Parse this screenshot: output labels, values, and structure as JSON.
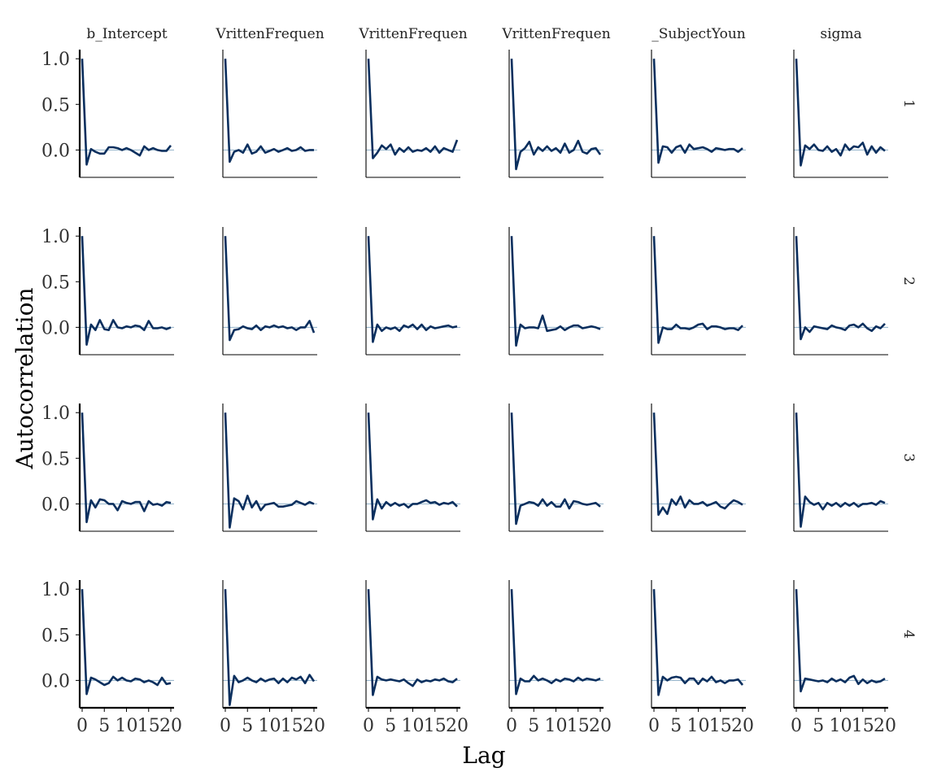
{
  "chart_data": {
    "type": "line",
    "xlabel": "Lag",
    "ylabel": "Autocorrelation",
    "columns": [
      "b_Intercept",
      "WrittenFrequency",
      "WrittenFrequency",
      "WrittenFrequency",
      "_SubjectYoung",
      "sigma"
    ],
    "column_labels_visible": [
      "b_Intercept",
      "VrittenFreque\u0000",
      "VrittenFreque\u0000",
      "VrittenFreque\u0000",
      "_SubjectYoun",
      "sigma"
    ],
    "rows": [
      "1",
      "2",
      "3",
      "4"
    ],
    "x_ticks": [
      0,
      5,
      10,
      15,
      20
    ],
    "x_tick_labels": [
      "0",
      "5",
      "10",
      "15",
      "20"
    ],
    "y_ticks": [
      0.0,
      0.5,
      1.0
    ],
    "y_tick_labels": [
      "0.0",
      "0.5",
      "1.0"
    ],
    "xlim": [
      0,
      20
    ],
    "ylim": [
      -0.3,
      1.1
    ],
    "lags": [
      0,
      1,
      2,
      3,
      4,
      5,
      6,
      7,
      8,
      9,
      10,
      11,
      12,
      13,
      14,
      15,
      16,
      17,
      18,
      19,
      20
    ],
    "colors": {
      "line": "#0b2f5e",
      "zero_line": "#8fb0c8",
      "axis": "#000000"
    },
    "panels": [
      [
        [
          1.0,
          -0.16,
          0.01,
          -0.02,
          -0.04,
          -0.04,
          0.03,
          0.03,
          0.02,
          0.0,
          0.02,
          0.0,
          -0.03,
          -0.06,
          0.04,
          0.0,
          0.02,
          0.0,
          -0.01,
          -0.01,
          0.05
        ],
        [
          1.0,
          -0.13,
          -0.02,
          0.0,
          -0.03,
          0.06,
          -0.04,
          -0.02,
          0.04,
          -0.03,
          -0.01,
          0.01,
          -0.02,
          0.0,
          0.02,
          -0.01,
          0.0,
          0.03,
          -0.01,
          0.0,
          0.0
        ],
        [
          1.0,
          -0.09,
          -0.03,
          0.05,
          0.01,
          0.06,
          -0.05,
          0.02,
          -0.02,
          0.03,
          -0.02,
          0.0,
          -0.01,
          0.02,
          -0.02,
          0.04,
          -0.03,
          0.02,
          0.0,
          -0.02,
          0.11
        ],
        [
          1.0,
          -0.21,
          -0.02,
          0.02,
          0.09,
          -0.05,
          0.03,
          -0.01,
          0.04,
          -0.01,
          0.02,
          -0.03,
          0.07,
          -0.03,
          0.0,
          0.1,
          -0.02,
          -0.04,
          0.01,
          0.02,
          -0.05
        ],
        [
          1.0,
          -0.14,
          0.04,
          0.03,
          -0.03,
          0.03,
          0.05,
          -0.03,
          0.06,
          0.01,
          0.02,
          0.03,
          0.01,
          -0.02,
          0.02,
          0.01,
          0.0,
          0.01,
          0.01,
          -0.02,
          0.02
        ],
        [
          1.0,
          -0.17,
          0.05,
          0.01,
          0.06,
          0.0,
          -0.01,
          0.04,
          -0.02,
          0.01,
          -0.06,
          0.06,
          0.0,
          0.04,
          0.03,
          0.08,
          -0.05,
          0.04,
          -0.03,
          0.03,
          -0.01
        ]
      ],
      [
        [
          1.0,
          -0.19,
          0.03,
          -0.03,
          0.08,
          -0.02,
          -0.03,
          0.08,
          0.0,
          -0.01,
          0.01,
          0.0,
          0.02,
          0.01,
          -0.03,
          0.07,
          -0.01,
          -0.01,
          0.0,
          -0.02,
          0.0
        ],
        [
          1.0,
          -0.14,
          -0.03,
          -0.02,
          0.01,
          -0.01,
          -0.02,
          0.02,
          -0.03,
          0.01,
          0.0,
          0.02,
          0.0,
          0.01,
          -0.01,
          0.0,
          -0.03,
          0.0,
          0.0,
          0.07,
          -0.06
        ],
        [
          1.0,
          -0.16,
          0.03,
          -0.04,
          0.0,
          -0.02,
          0.0,
          -0.04,
          0.02,
          0.0,
          0.03,
          -0.02,
          0.03,
          -0.03,
          0.01,
          -0.01,
          0.0,
          0.01,
          0.02,
          0.0,
          0.01
        ],
        [
          1.0,
          -0.2,
          0.03,
          -0.01,
          0.0,
          0.0,
          -0.01,
          0.13,
          -0.04,
          -0.03,
          -0.02,
          0.01,
          -0.03,
          0.0,
          0.02,
          0.02,
          -0.01,
          0.0,
          0.01,
          0.0,
          -0.02
        ],
        [
          1.0,
          -0.17,
          0.0,
          -0.02,
          -0.02,
          0.03,
          -0.01,
          -0.01,
          -0.02,
          0.0,
          0.03,
          0.04,
          -0.02,
          0.01,
          0.01,
          0.0,
          -0.02,
          -0.01,
          -0.01,
          -0.03,
          0.02
        ],
        [
          1.0,
          -0.13,
          0.0,
          -0.05,
          0.01,
          0.0,
          -0.01,
          -0.02,
          0.02,
          0.0,
          -0.01,
          -0.03,
          0.02,
          0.03,
          0.0,
          0.04,
          -0.01,
          -0.04,
          0.01,
          -0.01,
          0.04
        ]
      ],
      [
        [
          1.0,
          -0.2,
          0.04,
          -0.04,
          0.05,
          0.04,
          0.0,
          0.0,
          -0.07,
          0.03,
          0.01,
          0.0,
          0.02,
          0.02,
          -0.08,
          0.03,
          -0.01,
          0.0,
          -0.02,
          0.02,
          0.01
        ],
        [
          1.0,
          -0.26,
          0.06,
          0.03,
          -0.06,
          0.09,
          -0.04,
          0.03,
          -0.07,
          -0.01,
          0.0,
          0.01,
          -0.03,
          -0.03,
          -0.02,
          -0.01,
          0.03,
          0.01,
          -0.01,
          0.02,
          0.0
        ],
        [
          1.0,
          -0.17,
          0.05,
          -0.05,
          0.02,
          -0.02,
          0.01,
          -0.02,
          0.0,
          -0.04,
          0.0,
          0.0,
          0.02,
          0.04,
          0.01,
          0.02,
          -0.01,
          0.01,
          0.0,
          0.02,
          -0.03
        ],
        [
          1.0,
          -0.22,
          -0.02,
          0.0,
          0.02,
          0.01,
          -0.02,
          0.05,
          -0.02,
          0.02,
          -0.03,
          -0.03,
          0.05,
          -0.05,
          0.03,
          0.02,
          0.0,
          -0.01,
          0.0,
          0.01,
          -0.03
        ],
        [
          1.0,
          -0.12,
          -0.04,
          -0.11,
          0.05,
          -0.01,
          0.08,
          -0.04,
          0.04,
          0.0,
          0.0,
          0.02,
          -0.02,
          0.0,
          0.02,
          -0.03,
          -0.05,
          0.0,
          0.04,
          0.02,
          -0.01
        ],
        [
          1.0,
          -0.25,
          0.08,
          0.02,
          -0.01,
          0.01,
          -0.06,
          0.01,
          -0.02,
          0.01,
          -0.03,
          0.01,
          -0.02,
          0.01,
          -0.03,
          0.0,
          0.0,
          0.01,
          -0.01,
          0.03,
          0.01
        ]
      ],
      [
        [
          1.0,
          -0.15,
          0.03,
          0.01,
          -0.02,
          -0.05,
          -0.03,
          0.04,
          0.0,
          0.03,
          0.0,
          -0.01,
          0.02,
          0.01,
          -0.02,
          0.0,
          -0.02,
          -0.05,
          0.03,
          -0.04,
          -0.03
        ],
        [
          1.0,
          -0.27,
          0.05,
          -0.02,
          0.0,
          0.03,
          0.0,
          -0.02,
          0.02,
          -0.01,
          0.01,
          0.02,
          -0.03,
          0.02,
          -0.02,
          0.03,
          0.01,
          0.04,
          -0.03,
          0.06,
          -0.01
        ],
        [
          1.0,
          -0.16,
          0.04,
          0.01,
          0.0,
          0.01,
          0.0,
          -0.01,
          0.01,
          -0.03,
          -0.06,
          0.01,
          -0.02,
          0.0,
          -0.01,
          0.01,
          0.0,
          0.02,
          -0.01,
          -0.02,
          0.02
        ],
        [
          1.0,
          -0.15,
          0.02,
          -0.01,
          -0.01,
          0.05,
          0.0,
          0.02,
          0.0,
          -0.03,
          0.01,
          -0.01,
          0.02,
          0.01,
          -0.01,
          0.03,
          0.0,
          0.02,
          0.01,
          0.0,
          0.02
        ],
        [
          1.0,
          -0.16,
          0.04,
          0.0,
          0.03,
          0.04,
          0.03,
          -0.03,
          0.02,
          0.02,
          -0.04,
          0.02,
          -0.01,
          0.04,
          -0.02,
          0.0,
          -0.03,
          0.0,
          0.0,
          0.01,
          -0.05
        ],
        [
          1.0,
          -0.12,
          0.02,
          0.01,
          0.0,
          -0.01,
          0.0,
          -0.02,
          0.02,
          -0.01,
          0.01,
          -0.02,
          0.03,
          0.05,
          -0.04,
          0.01,
          -0.03,
          0.0,
          -0.02,
          -0.01,
          0.02
        ]
      ]
    ]
  }
}
